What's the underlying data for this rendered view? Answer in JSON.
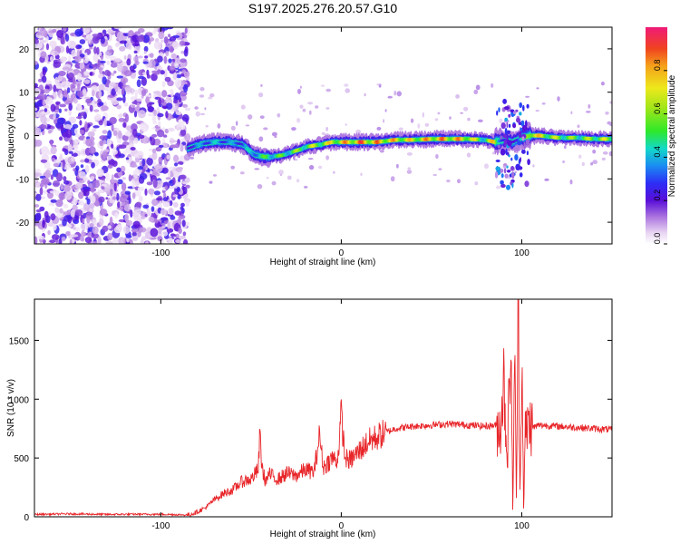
{
  "title": "S197.2025.276.20.57.G10",
  "spectrogram": {
    "xlabel": "Height of straight line (km)",
    "ylabel": "Frequency (Hz)",
    "xlim": [
      -170,
      150
    ],
    "ylim": [
      -25,
      25
    ],
    "xticks": [
      -100,
      0,
      100
    ],
    "yticks": [
      -20,
      -10,
      0,
      10,
      20
    ],
    "colorbar": {
      "label": "Normalized spectral amplitude",
      "ticks": [
        0,
        0.2,
        0.4,
        0.6,
        0.8
      ],
      "tick_labels": [
        "0.0",
        "0.2",
        "0.4",
        "0.6",
        "0.8"
      ]
    }
  },
  "chart_data": [
    {
      "type": "heatmap",
      "title": "S197.2025.276.20.57.G10",
      "xlabel": "Height of straight line (km)",
      "ylabel": "Frequency (Hz)",
      "xlim": [
        -170,
        150
      ],
      "ylim": [
        -25,
        25
      ],
      "colorbar_label": "Normalized spectral amplitude",
      "colorbar_range": [
        0,
        1
      ],
      "dominant_frequency_track": {
        "x": [
          -85,
          -78,
          -70,
          -62,
          -55,
          -48,
          -40,
          -32,
          -25,
          -18,
          -10,
          -5,
          0,
          10,
          20,
          30,
          40,
          50,
          60,
          70,
          80,
          85,
          90,
          95,
          100,
          105,
          110,
          120,
          130,
          140,
          150
        ],
        "y": [
          -3.0,
          -2.0,
          -1.5,
          -1.5,
          -2.0,
          -4.5,
          -5.0,
          -4.5,
          -3.5,
          -2.5,
          -2.0,
          -1.5,
          -1.5,
          -1.5,
          -1.5,
          -1.0,
          -1.0,
          -0.8,
          -0.8,
          -0.8,
          -1.0,
          -1.5,
          -1.0,
          -1.5,
          -0.5,
          0.0,
          0.0,
          -0.5,
          -0.5,
          -0.8,
          -0.8
        ],
        "amplitude": [
          0.35,
          0.4,
          0.45,
          0.4,
          0.4,
          0.5,
          0.6,
          0.6,
          0.65,
          0.7,
          0.75,
          0.8,
          0.85,
          0.95,
          0.9,
          0.85,
          0.8,
          0.9,
          0.9,
          0.85,
          0.6,
          0.9,
          0.3,
          0.3,
          0.5,
          0.95,
          0.8,
          0.7,
          0.65,
          0.7,
          0.75
        ]
      }
    },
    {
      "type": "line",
      "xlabel": "Height of straight line (km)",
      "ylabel": "SNR (10 * v/v)",
      "xlim": [
        -170,
        150
      ],
      "ylim": [
        0,
        1850
      ],
      "xticks": [
        -100,
        0,
        100
      ],
      "yticks": [
        0,
        500,
        1000,
        1500
      ],
      "series": [
        {
          "color": "#e8262a",
          "x": [
            -170,
            -150,
            -130,
            -110,
            -95,
            -85,
            -80,
            -75,
            -70,
            -65,
            -60,
            -55,
            -50,
            -46,
            -45,
            -44,
            -42,
            -40,
            -35,
            -30,
            -25,
            -20,
            -15,
            -12,
            -10,
            -5,
            -2,
            0,
            2,
            5,
            10,
            15,
            20,
            25,
            30,
            40,
            50,
            60,
            70,
            80,
            85,
            88,
            90,
            92,
            94,
            95,
            96,
            97,
            98,
            99,
            100,
            101,
            102,
            104,
            106,
            110,
            120,
            130,
            140,
            150
          ],
          "y": [
            20,
            25,
            20,
            22,
            20,
            15,
            40,
            80,
            150,
            200,
            230,
            300,
            320,
            400,
            720,
            420,
            300,
            360,
            320,
            370,
            350,
            400,
            380,
            700,
            420,
            500,
            480,
            880,
            500,
            480,
            560,
            640,
            680,
            720,
            750,
            770,
            780,
            790,
            780,
            770,
            780,
            750,
            1150,
            500,
            1550,
            50,
            1400,
            150,
            1860,
            200,
            1500,
            100,
            700,
            800,
            760,
            780,
            770,
            760,
            750,
            740
          ]
        }
      ]
    }
  ]
}
